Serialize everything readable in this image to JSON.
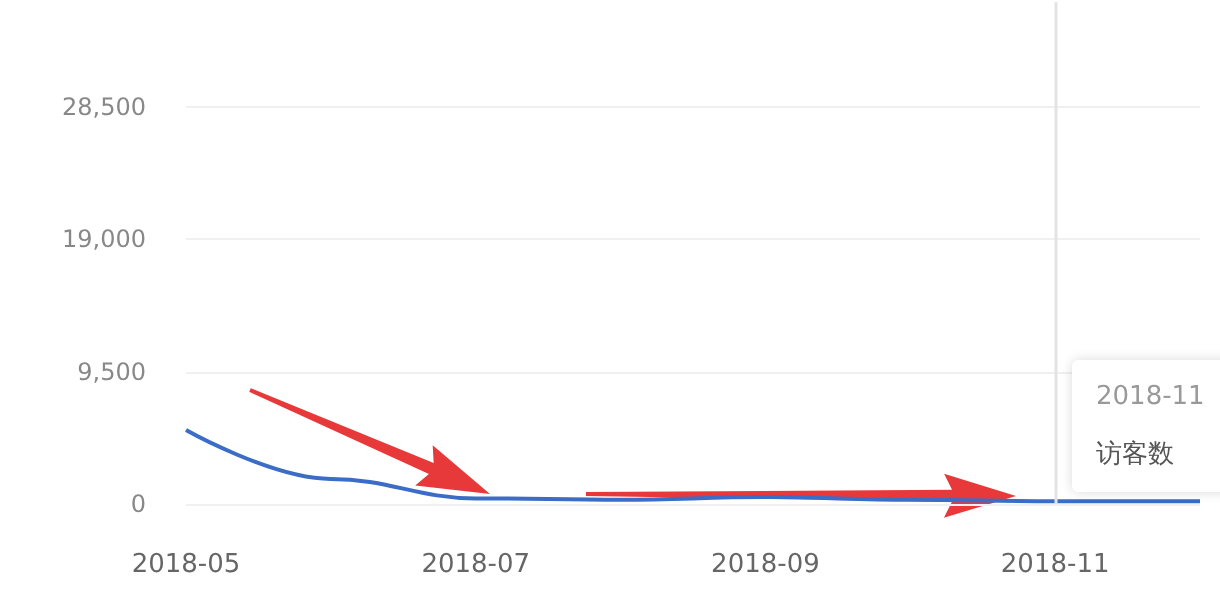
{
  "chart_data": {
    "type": "line",
    "categories": [
      "2018-05",
      null,
      "2018-07",
      null,
      "2018-09",
      null,
      "2018-11",
      null
    ],
    "series": [
      {
        "color": "#3a6cc8",
        "values": [
          5300,
          1800,
          400,
          300,
          500,
          300,
          200,
          200
        ]
      }
    ],
    "ylim": [
      0,
      36000
    ],
    "yticks": [
      0,
      {
        "value": 9500,
        "label": "9,500"
      },
      {
        "value": 19000,
        "label": "19,000"
      },
      {
        "value": 28500,
        "label": "28,500"
      }
    ],
    "grid": "y",
    "marker": "none",
    "line_style": "solid",
    "ref_lines": [
      {
        "axis": "x",
        "value": "2018-11",
        "color": "#e3e3e3"
      }
    ],
    "annotations": [
      "2018-11",
      "访客数"
    ]
  }
}
